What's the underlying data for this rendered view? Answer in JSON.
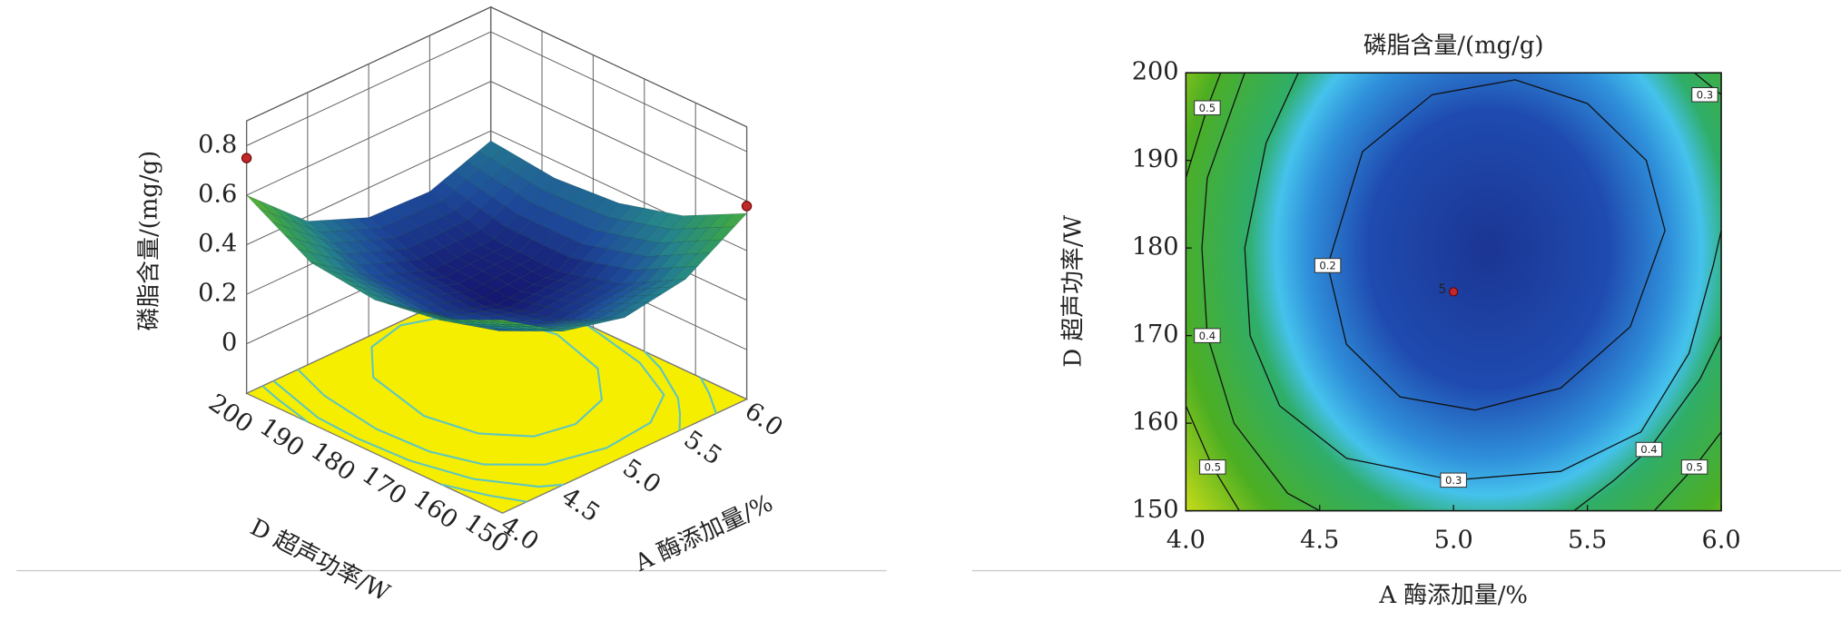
{
  "chart_data": [
    {
      "type": "surface3d",
      "zlabel": "磷脂含量/(mg/g)",
      "xlabel": "A 酶添加量/%",
      "ylabel": "D 超声功率/W",
      "x": [
        4,
        4.5,
        5,
        5.5,
        6
      ],
      "y": [
        150,
        162.5,
        175,
        187.5,
        200
      ],
      "z": [
        [
          0.58,
          0.42,
          0.36,
          0.4,
          0.55
        ],
        [
          0.46,
          0.3,
          0.23,
          0.26,
          0.42
        ],
        [
          0.42,
          0.25,
          0.17,
          0.19,
          0.35
        ],
        [
          0.45,
          0.28,
          0.19,
          0.2,
          0.33
        ],
        [
          0.6,
          0.38,
          0.28,
          0.27,
          0.36
        ]
      ],
      "xlim": [
        4,
        6
      ],
      "ylim": [
        150,
        200
      ],
      "zlim": [
        -0.2,
        0.9
      ],
      "xticks": [
        {
          "value": 4,
          "label": "4.0"
        },
        4.5,
        {
          "value": 5,
          "label": "5.0"
        },
        5.5,
        {
          "value": 6,
          "label": "6.0"
        }
      ],
      "yticks": [
        150,
        160,
        170,
        180,
        190,
        200
      ],
      "zticks": [
        0,
        0.2,
        0.4,
        0.6,
        0.8
      ],
      "points": {
        "x": [
          4,
          6
        ],
        "y": [
          200,
          150
        ],
        "z": [
          0.75,
          0.58
        ],
        "color": "#c0282a"
      },
      "colormap": [
        "#15156e",
        "#1e4c9c",
        "#25858c",
        "#36a055",
        "#5fb22e"
      ],
      "floor_color": "#f6ee00",
      "contour_color": "#5cc6c4"
    },
    {
      "type": "contour",
      "title": "磷脂含量/(mg/g)",
      "xlabel": "A 酶添加量/%",
      "ylabel": "D 超声功率/W",
      "xlim": [
        4,
        6
      ],
      "ylim": [
        150,
        200
      ],
      "xticks": [
        {
          "value": 4,
          "label": "4.0"
        },
        4.5,
        {
          "value": 5,
          "label": "5.0"
        },
        5.5,
        {
          "value": 6,
          "label": "6.0"
        }
      ],
      "yticks": [
        150,
        160,
        170,
        180,
        190,
        200
      ],
      "contours": [
        {
          "level": 0.2,
          "x": [
            5.79,
            5.72,
            5.5,
            5.23,
            4.92,
            4.66,
            4.53,
            4.6,
            4.8,
            5.08,
            5.4,
            5.66,
            5.79
          ],
          "y": [
            182,
            190,
            196.5,
            199.2,
            197.5,
            191,
            178,
            169,
            163,
            161.5,
            164,
            171,
            182
          ]
        },
        {
          "level": 0.3,
          "x": [
            4.42,
            4.3,
            4.22,
            4.24,
            4.35,
            4.6,
            5.0,
            5.4,
            5.7,
            5.88,
            5.97,
            6.0,
            null,
            5.9,
            6.0
          ],
          "y": [
            200,
            192,
            180,
            170,
            162,
            156,
            153.5,
            154.5,
            159,
            168,
            178,
            182,
            null,
            200,
            197.5
          ]
        },
        {
          "level": 0.4,
          "x": [
            4.22,
            4.08,
            4.06,
            4.08,
            4.18,
            4.38,
            4.5,
            null,
            5.45,
            5.6,
            5.73,
            5.92,
            6.0
          ],
          "y": [
            200,
            188,
            180,
            170,
            160,
            152,
            150,
            null,
            150,
            153.5,
            157,
            165,
            170
          ]
        },
        {
          "level": 0.5,
          "x": [
            4.0,
            4.08,
            4.13,
            null,
            4.0,
            4.1,
            4.2,
            null,
            5.75,
            5.9,
            6.0
          ],
          "y": [
            188,
            196,
            200,
            null,
            162,
            155,
            150,
            null,
            150,
            155,
            159
          ]
        }
      ],
      "point": {
        "x": 5,
        "y": 175,
        "count": 5,
        "color": "#c0282a"
      },
      "line_color": "#111111"
    }
  ]
}
